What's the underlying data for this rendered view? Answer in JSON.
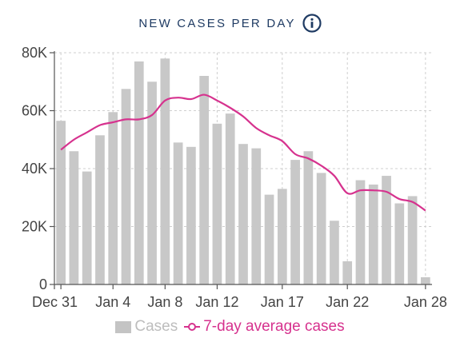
{
  "header": {
    "title": "NEW CASES PER DAY",
    "info_icon": "info-icon"
  },
  "legend": {
    "cases_label": "Cases",
    "avg_label": "7-day average cases"
  },
  "colors": {
    "bars": "#c8c8c8",
    "avg_line": "#d6328e",
    "title": "#1f3b63",
    "axis_text": "#444444",
    "grid": "#cfcfcf"
  },
  "chart_data": {
    "type": "bar",
    "title": "NEW CASES PER DAY",
    "xlabel": "",
    "ylabel": "",
    "ylim": [
      0,
      80000
    ],
    "yticks": [
      0,
      20000,
      40000,
      60000,
      80000
    ],
    "ytick_labels": [
      "0",
      "20K",
      "40K",
      "60K",
      "80K"
    ],
    "xtick_labels": [
      "Dec 31",
      "Jan 4",
      "Jan 8",
      "Jan 12",
      "Jan 17",
      "Jan 22",
      "Jan 28"
    ],
    "xtick_indices": [
      0,
      4,
      8,
      12,
      17,
      22,
      28
    ],
    "grid": true,
    "legend_position": "bottom",
    "categories": [
      "Dec 31",
      "Jan 1",
      "Jan 2",
      "Jan 3",
      "Jan 4",
      "Jan 5",
      "Jan 6",
      "Jan 7",
      "Jan 8",
      "Jan 9",
      "Jan 10",
      "Jan 11",
      "Jan 12",
      "Jan 13",
      "Jan 14",
      "Jan 15",
      "Jan 16",
      "Jan 17",
      "Jan 18",
      "Jan 19",
      "Jan 20",
      "Jan 21",
      "Jan 22",
      "Jan 23",
      "Jan 24",
      "Jan 25",
      "Jan 26",
      "Jan 27",
      "Jan 28"
    ],
    "series": [
      {
        "name": "Cases",
        "type": "bar",
        "values": [
          56500,
          46000,
          39000,
          51500,
          59500,
          67500,
          77000,
          70000,
          78000,
          49000,
          47500,
          72000,
          55500,
          59000,
          48500,
          47000,
          31000,
          33000,
          43000,
          46000,
          38500,
          22000,
          8000,
          36000,
          34500,
          37500,
          28000,
          30500,
          2500
        ]
      },
      {
        "name": "7-day average cases",
        "type": "line",
        "values": [
          46500,
          50000,
          52500,
          55000,
          56000,
          57000,
          57000,
          58500,
          63500,
          64500,
          64000,
          65500,
          63500,
          61000,
          58000,
          54000,
          51500,
          49500,
          45000,
          43500,
          41000,
          37500,
          31500,
          32500,
          32500,
          32000,
          29500,
          28500,
          25500
        ]
      }
    ]
  }
}
